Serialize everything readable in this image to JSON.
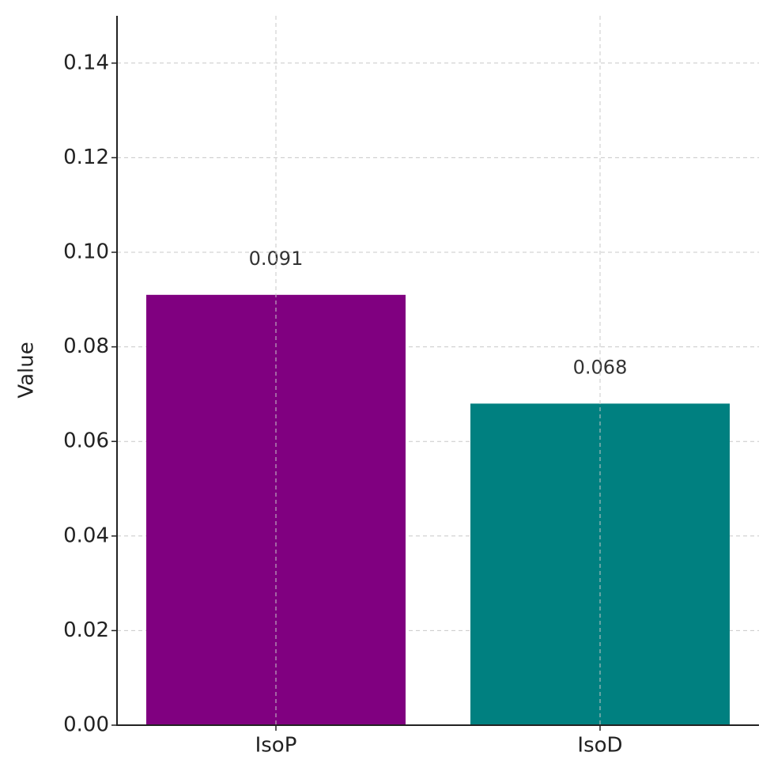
{
  "chart_data": {
    "type": "bar",
    "y_label": "Value",
    "categories": [
      "IsoP",
      "IsoD"
    ],
    "values": [
      0.091,
      0.068
    ],
    "colors": [
      "#800080",
      "#008080"
    ],
    "ylim": [
      0,
      0.15
    ],
    "yticks": [
      {
        "value": 0,
        "label": "0.00"
      },
      0.02,
      0.04,
      0.06,
      0.08,
      {
        "value": 0.1,
        "label": "0.10"
      },
      0.12,
      0.14
    ],
    "grid": true
  }
}
